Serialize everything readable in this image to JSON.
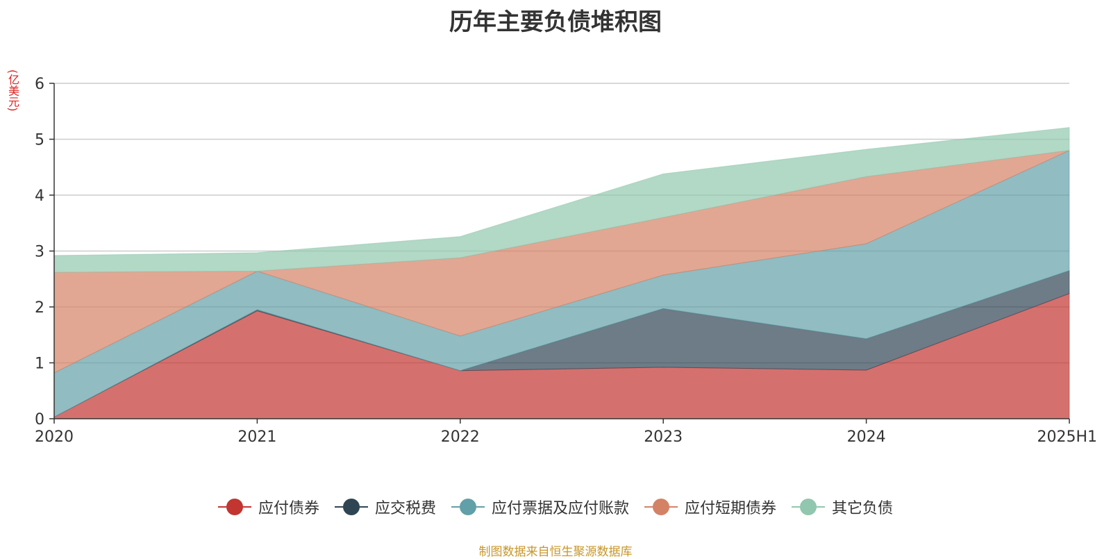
{
  "chart_data": {
    "type": "area",
    "stacked": true,
    "title": "历年主要负债堆积图",
    "unit_label": "(亿美元)",
    "categories": [
      "2020",
      "2021",
      "2022",
      "2023",
      "2024",
      "2025H1"
    ],
    "ylim": [
      0,
      6
    ],
    "yticks": [
      "0",
      "1",
      "2",
      "3",
      "4",
      "5",
      "6"
    ],
    "grid": true,
    "legend_position": "bottom",
    "series": [
      {
        "name": "应付债券",
        "color": "#c23531",
        "values": [
          0.03,
          1.93,
          0.86,
          0.92,
          0.87,
          2.24
        ]
      },
      {
        "name": "应交税费",
        "color": "#2f4554",
        "values": [
          0.0,
          0.02,
          0.0,
          1.05,
          0.56,
          0.41
        ]
      },
      {
        "name": "应付票据及应付账款",
        "color": "#61a0a8",
        "values": [
          0.79,
          0.69,
          0.62,
          0.6,
          1.7,
          2.15
        ]
      },
      {
        "name": "应付短期债券",
        "color": "#d48265",
        "values": [
          1.8,
          0.0,
          1.4,
          1.03,
          1.2,
          0.0
        ]
      },
      {
        "name": "其它负债",
        "color": "#91c7ae",
        "values": [
          0.3,
          0.33,
          0.38,
          0.78,
          0.49,
          0.41
        ]
      }
    ]
  },
  "footer": "制图数据来自恒生聚源数据库"
}
